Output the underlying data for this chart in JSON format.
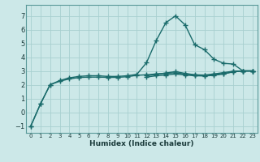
{
  "title": "",
  "xlabel": "Humidex (Indice chaleur)",
  "background_color": "#cce8e8",
  "grid_color": "#a8d0d0",
  "line_color": "#1a6b6b",
  "x_values": [
    0,
    1,
    2,
    3,
    4,
    5,
    6,
    7,
    8,
    9,
    10,
    11,
    12,
    13,
    14,
    15,
    16,
    17,
    18,
    19,
    20,
    21,
    22,
    23
  ],
  "series": [
    [
      -1.0,
      0.6,
      2.0,
      2.3,
      2.5,
      2.6,
      2.65,
      2.65,
      2.6,
      2.6,
      2.65,
      2.75,
      3.6,
      5.2,
      6.5,
      7.0,
      6.35,
      4.9,
      4.55,
      3.85,
      3.55,
      3.5,
      3.0,
      3.0
    ],
    [
      null,
      null,
      null,
      null,
      null,
      null,
      null,
      null,
      null,
      null,
      null,
      null,
      2.65,
      2.75,
      2.85,
      2.95,
      2.82,
      2.72,
      2.7,
      2.78,
      2.88,
      2.98,
      3.0,
      3.0
    ],
    [
      null,
      null,
      null,
      null,
      null,
      null,
      null,
      null,
      null,
      null,
      null,
      null,
      2.55,
      2.65,
      2.7,
      2.78,
      2.7,
      2.65,
      2.63,
      2.68,
      2.78,
      2.93,
      3.0,
      3.0
    ],
    [
      -1.0,
      0.6,
      2.0,
      2.25,
      2.42,
      2.52,
      2.55,
      2.55,
      2.53,
      2.53,
      2.58,
      2.68,
      2.72,
      2.78,
      2.82,
      2.87,
      2.77,
      2.7,
      2.67,
      2.72,
      2.8,
      2.95,
      3.0,
      3.0
    ]
  ],
  "ylim": [
    -1.5,
    7.8
  ],
  "xlim": [
    -0.5,
    23.5
  ],
  "yticks": [
    -1,
    0,
    1,
    2,
    3,
    4,
    5,
    6,
    7
  ],
  "xticks": [
    0,
    1,
    2,
    3,
    4,
    5,
    6,
    7,
    8,
    9,
    10,
    11,
    12,
    13,
    14,
    15,
    16,
    17,
    18,
    19,
    20,
    21,
    22,
    23
  ],
  "marker": "+",
  "marker_size": 4,
  "line_width": 1.0
}
